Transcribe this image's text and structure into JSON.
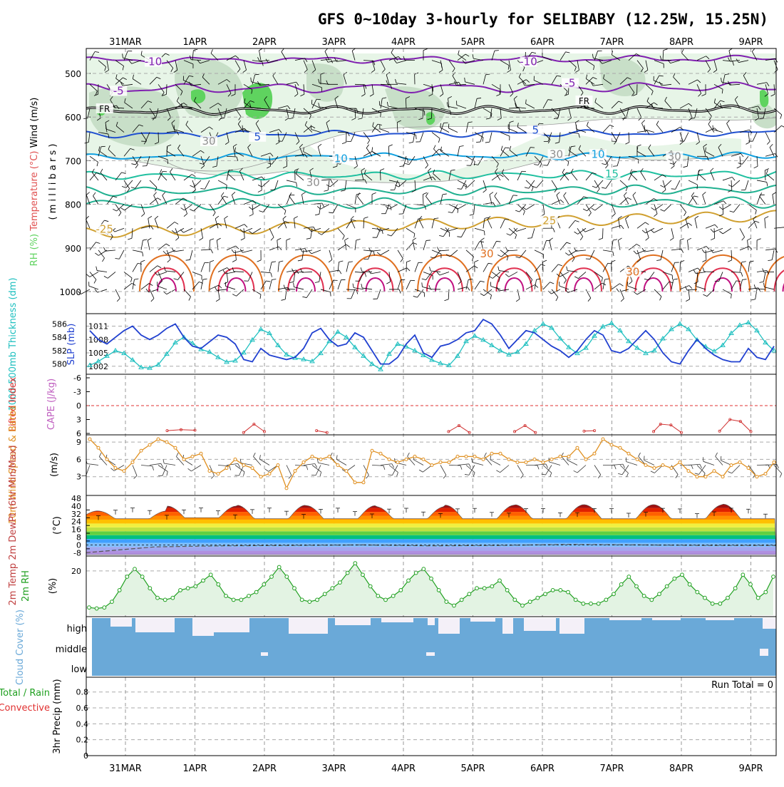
{
  "title": "GFS 0~10day 3-hourly for SELIBABY (12.25W, 15.25N)",
  "date_labels": [
    "31MAR",
    "1APR",
    "2APR",
    "3APR",
    "4APR",
    "5APR",
    "6APR",
    "7APR",
    "8APR",
    "9APR"
  ],
  "colors": {
    "rh_fill": "#5fd35f",
    "thickness": "#20c0c0",
    "slp": "#2040d0",
    "wind10m": "#e09020",
    "rh2m": "#20a020",
    "cloud": "#6aa9d8",
    "li_zero": "#e03030"
  },
  "chart_data": [
    {
      "id": "upper",
      "type": "heatmap",
      "ylabel_parts": [
        "RH (%)",
        "Temperature (°C)",
        "Wind (m/s)"
      ],
      "ylabel2": "( m i l l i b a r s )",
      "y_ticks": [
        500,
        600,
        700,
        800,
        900,
        1000
      ],
      "y_range": [
        450,
        1000
      ],
      "isotherm_labels": [
        {
          "text": "-10",
          "day": 0.4,
          "p": 478,
          "color": "#8020b0"
        },
        {
          "text": "-10",
          "day": 5.8,
          "p": 478,
          "color": "#8020b0"
        },
        {
          "text": "-5",
          "day": -0.1,
          "p": 545,
          "color": "#8020b0"
        },
        {
          "text": "-5",
          "day": 6.4,
          "p": 527,
          "color": "#8020b0"
        },
        {
          "text": "FR",
          "day": -0.3,
          "p": 585,
          "color": "#000000"
        },
        {
          "text": "FR",
          "day": 6.6,
          "p": 567,
          "color": "#000000"
        },
        {
          "text": "5",
          "day": 1.9,
          "p": 650,
          "color": "#2050d0"
        },
        {
          "text": "5",
          "day": 5.9,
          "p": 635,
          "color": "#2050d0"
        },
        {
          "text": "10",
          "day": 3.1,
          "p": 700,
          "color": "#10a0e0"
        },
        {
          "text": "10",
          "day": 6.8,
          "p": 690,
          "color": "#10a0e0"
        },
        {
          "text": "15",
          "day": 7.0,
          "p": 735,
          "color": "#20c0a0"
        },
        {
          "text": "-25",
          "day": -0.3,
          "p": 862,
          "color": "#d0a030"
        },
        {
          "text": "25",
          "day": 6.1,
          "p": 842,
          "color": "#d0a030"
        },
        {
          "text": "30",
          "day": 5.2,
          "p": 918,
          "color": "#e07020"
        },
        {
          "text": "30",
          "day": 7.3,
          "p": 960,
          "color": "#e07020"
        },
        {
          "text": "30",
          "day": 1.2,
          "p": 660,
          "color": "#909090"
        },
        {
          "text": "30",
          "day": 6.2,
          "p": 690,
          "color": "#909090"
        },
        {
          "text": "30",
          "day": 7.9,
          "p": 695,
          "color": "#909090"
        },
        {
          "text": "30",
          "day": 2.7,
          "p": 755,
          "color": "#909090"
        }
      ]
    },
    {
      "id": "thickness_slp",
      "type": "line",
      "ylabel_left": "1000-500mb Thickness (dm)",
      "ylabel_right": "SLP (mb)",
      "left_ticks": [
        580,
        582,
        584,
        586
      ],
      "right_ticks": [
        1002,
        1005,
        1008,
        1011
      ],
      "left_range": [
        579,
        587
      ],
      "right_range": [
        1001,
        1013
      ],
      "series": [
        {
          "name": "1000-500mb Thickness (dm)",
          "values": [
            579.8,
            580.4,
            581.2,
            582.0,
            581.6,
            580.6,
            579.5,
            579.4,
            579.9,
            581.5,
            583.2,
            584.0,
            583.1,
            582.2,
            581.8,
            581.0,
            580.3,
            580.5,
            581.7,
            583.6,
            585.2,
            584.6,
            582.8,
            581.4,
            580.9,
            580.7,
            580.4,
            581.6,
            583.4,
            584.8,
            584.0,
            582.5,
            581.2,
            580.0,
            579.2,
            581.5,
            583.0,
            582.6,
            582.0,
            581.3,
            580.6,
            580.1,
            579.8,
            581.2,
            583.4,
            584.2,
            583.6,
            582.8,
            582.0,
            581.4,
            581.8,
            583.0,
            585.0,
            586.0,
            585.4,
            583.8,
            582.5,
            581.6,
            582.4,
            584.2,
            585.6,
            586.1,
            585.0,
            583.4,
            582.4,
            581.6,
            582.0,
            583.8,
            585.2,
            586.0,
            585.2,
            583.6,
            582.6,
            581.9,
            582.8,
            584.6,
            585.8,
            586.2,
            585.0,
            583.2,
            582.0
          ]
        },
        {
          "name": "SLP (mb)",
          "values": [
            1010,
            1008,
            1007,
            1008.5,
            1010,
            1011,
            1009,
            1008,
            1009,
            1010.5,
            1011.5,
            1008.5,
            1006.5,
            1006,
            1007.5,
            1009,
            1008.5,
            1007,
            1003.5,
            1003,
            1006,
            1004.5,
            1004,
            1003.5,
            1004,
            1006,
            1009.5,
            1010.5,
            1008,
            1006.5,
            1007,
            1009.5,
            1008.5,
            1005.5,
            1002.5,
            1002.5,
            1004,
            1007,
            1009,
            1005,
            1004,
            1006.5,
            1007,
            1008,
            1009.5,
            1010,
            1012.5,
            1011.5,
            1009,
            1006,
            1008,
            1010,
            1009.5,
            1008,
            1006.5,
            1005.5,
            1004,
            1005.5,
            1008,
            1010,
            1009,
            1005.5,
            1005,
            1006,
            1008,
            1010,
            1008,
            1005,
            1003,
            1002.5,
            1005.5,
            1008,
            1006,
            1004.5,
            1003.5,
            1003,
            1003,
            1006,
            1004,
            1003.5,
            1006.5
          ]
        }
      ]
    },
    {
      "id": "li_cape",
      "type": "line",
      "ylabel_left": "Lifted Index",
      "ylabel_right": "CAPE (J/kg)",
      "left_ticks": [
        -6,
        -3,
        0,
        3,
        6
      ],
      "left_range": [
        -6,
        6
      ],
      "series": [
        {
          "name": "Lifted Index",
          "points": [
            [
              0.6,
              5.4
            ],
            [
              0.8,
              5.2
            ],
            [
              1.0,
              5.3
            ],
            [
              1.7,
              5.8
            ],
            [
              1.85,
              4.0
            ],
            [
              2.0,
              5.6
            ],
            [
              2.75,
              5.4
            ],
            [
              2.9,
              5.8
            ],
            [
              4.65,
              5.6
            ],
            [
              4.8,
              4.3
            ],
            [
              4.95,
              5.8
            ],
            [
              5.6,
              5.6
            ],
            [
              5.75,
              4.3
            ],
            [
              5.9,
              5.8
            ],
            [
              6.6,
              5.5
            ],
            [
              6.75,
              5.4
            ],
            [
              7.6,
              5.6
            ],
            [
              7.7,
              4.0
            ],
            [
              7.85,
              4.2
            ],
            [
              8.0,
              5.8
            ],
            [
              8.55,
              5.5
            ],
            [
              8.7,
              3.0
            ],
            [
              8.85,
              3.4
            ],
            [
              9.0,
              5.6
            ]
          ]
        }
      ]
    },
    {
      "id": "wind10m",
      "type": "line",
      "ylabel_left": "10m Wind Speed & Barbs",
      "ylabel_right": "(m/s)",
      "left_ticks": [
        3,
        6,
        9
      ],
      "left_range": [
        0,
        10
      ],
      "series": [
        {
          "name": "10m Wind Speed",
          "values": [
            9.5,
            8,
            6,
            4.5,
            4,
            5.5,
            7.5,
            8.5,
            9.5,
            9,
            8,
            6,
            6.5,
            7,
            4,
            3.5,
            4.5,
            6,
            5,
            4.5,
            3,
            3.5,
            5,
            1,
            4,
            5.5,
            6.5,
            6,
            6.5,
            5,
            4,
            2,
            2,
            7.5,
            7,
            6,
            5.5,
            6,
            6.5,
            6,
            5,
            5.5,
            5.5,
            6.5,
            6.5,
            6.5,
            6,
            7,
            7,
            6,
            5.5,
            5.5,
            6,
            5.5,
            6,
            6.5,
            6.5,
            8,
            6,
            7,
            9.5,
            8.5,
            8,
            7,
            6,
            5,
            4.5,
            5,
            4.5,
            5.5,
            4,
            3,
            3,
            4,
            3,
            5,
            5.5,
            4.5,
            3,
            3.5,
            5.5
          ]
        }
      ]
    },
    {
      "id": "temp2m",
      "type": "area",
      "ylabel_left": "2m Temp 2m DewPt (6hr Min/Max)",
      "ylabel_right": "(°C)",
      "left_ticks": [
        -8,
        0,
        8,
        16,
        24,
        32,
        40,
        48
      ],
      "extra_ticks": [
        -4,
        4,
        12,
        20,
        28,
        36
      ],
      "left_range": [
        -10,
        48
      ],
      "temp_min": [
        27,
        28,
        27,
        27,
        27,
        27,
        27,
        27,
        27,
        27
      ],
      "temp_max": [
        35,
        40,
        41,
        40.5,
        39.5,
        41,
        41.5,
        41.5,
        41.5,
        42
      ],
      "dewpt": [
        -8,
        -2,
        -1,
        -0.5,
        0,
        -1,
        -0.5,
        0.5,
        0,
        -0.5,
        -0.5
      ]
    },
    {
      "id": "rh2m",
      "type": "area",
      "ylabel_left": "2m RH",
      "ylabel_right": "(%)",
      "left_ticks": [
        20
      ],
      "left_range": [
        -3,
        27
      ],
      "series": [
        {
          "name": "2m RH",
          "values": [
            1,
            0.5,
            1,
            4,
            10,
            17,
            21,
            17,
            11,
            6,
            5,
            6,
            10,
            11,
            12,
            15,
            18,
            13,
            7,
            5,
            5,
            7,
            9,
            13,
            17,
            22,
            17,
            11,
            5,
            4,
            5,
            8,
            11,
            14,
            19,
            24,
            18,
            12,
            7,
            5,
            7,
            10,
            15,
            19,
            21,
            16,
            10,
            4,
            2,
            5,
            8,
            11,
            11,
            12,
            15,
            10,
            5,
            2,
            4,
            6,
            8,
            10,
            10,
            9,
            5,
            3,
            3,
            3,
            5,
            8,
            13,
            17,
            12,
            7,
            5,
            8,
            12,
            16,
            18,
            13,
            9,
            6,
            3,
            3,
            6,
            11,
            18,
            13,
            6,
            9,
            17
          ]
        }
      ]
    },
    {
      "id": "cloud",
      "type": "heatmap",
      "ylabel_left": "Cloud Cover (%)",
      "ylabel_levels": [
        "high",
        "middle",
        "low"
      ]
    },
    {
      "id": "precip",
      "type": "bar",
      "ylabel_left": "Total / Rain Convective",
      "ylabel_right": "3hr Precip (mm)",
      "left_ticks": [
        0,
        0.2,
        0.4,
        0.6,
        0.8
      ],
      "left_range": [
        0,
        0.95
      ],
      "run_total": "Run Total = 0"
    }
  ]
}
